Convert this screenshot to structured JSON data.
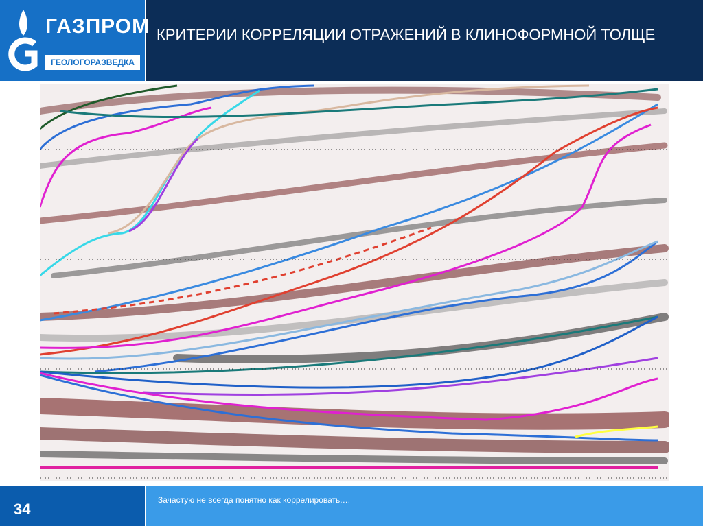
{
  "header": {
    "logo": {
      "brand": "ГАЗПРОМ",
      "division": "ГЕОЛОГОРАЗВЕДКА"
    },
    "title": "КРИТЕРИИ КОРРЕЛЯЦИИ ОТРАЖЕНИЙ В КЛИНОФОРМНОЙ ТОЛЩЕ"
  },
  "footer": {
    "page_number": "34",
    "note": "Зачастую не всегда понятно как коррелировать.…"
  }
}
